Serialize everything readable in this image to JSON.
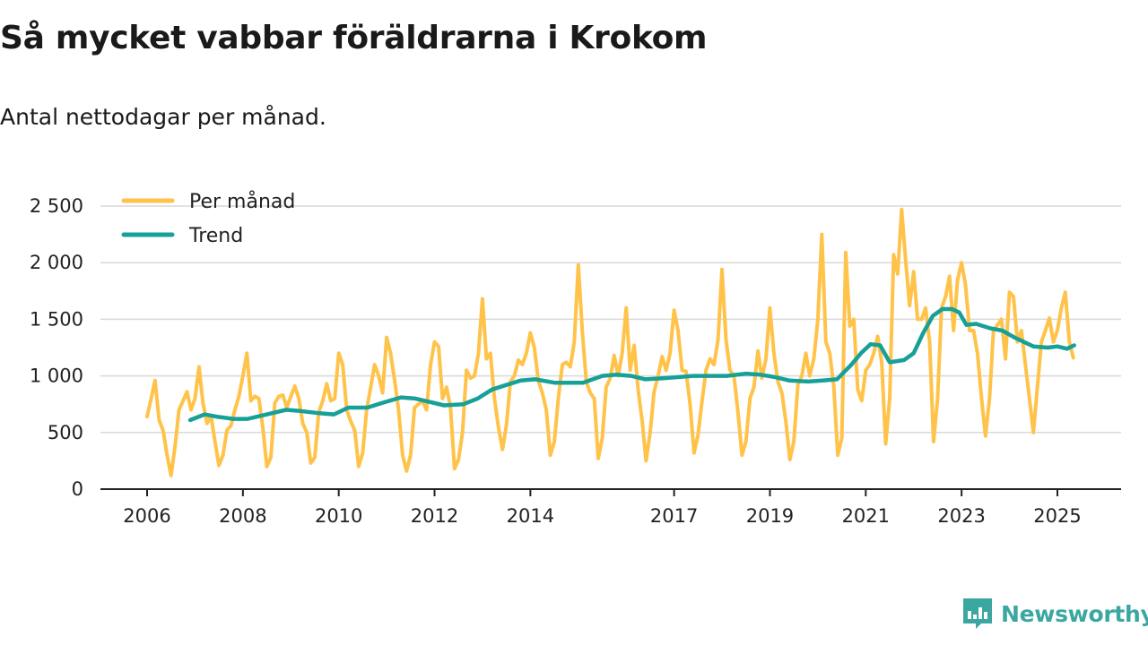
{
  "title": "Så mycket vabbar föräldrarna i Krokom",
  "subtitle": "Antal nettodagar per månad.",
  "brand": {
    "name": "Newsworthy",
    "icon": "newsworthy-logo-icon"
  },
  "colors": {
    "monthly": "#ffc34a",
    "trend": "#17a097",
    "grid": "#d9d9d9",
    "axis": "#222222"
  },
  "chart_data": {
    "type": "line",
    "title": "Så mycket vabbar föräldrarna i Krokom",
    "subtitle": "Antal nettodagar per månad.",
    "xlabel": "",
    "ylabel": "",
    "xlim": [
      2006,
      2025.5
    ],
    "ylim": [
      0,
      2500
    ],
    "yticks": [
      0,
      500,
      1000,
      1500,
      2000,
      2500
    ],
    "ytick_labels": [
      "0",
      "500",
      "1 000",
      "1 500",
      "2 000",
      "2 500"
    ],
    "xticks": [
      2006,
      2008,
      2010,
      2012,
      2014,
      2017,
      2019,
      2021,
      2023,
      2025
    ],
    "xtick_labels": [
      "2006",
      "2008",
      "2010",
      "2012",
      "2014",
      "2017",
      "2019",
      "2021",
      "2023",
      "2025"
    ],
    "grid": true,
    "legend_position": "top-left",
    "series": [
      {
        "name": "Per månad",
        "color": "#ffc34a",
        "x_start": 2006,
        "step": 0.08333,
        "values": [
          640,
          800,
          960,
          610,
          520,
          300,
          120,
          380,
          700,
          780,
          860,
          700,
          800,
          1080,
          760,
          580,
          650,
          420,
          210,
          300,
          520,
          560,
          700,
          820,
          1000,
          1200,
          780,
          820,
          800,
          540,
          200,
          280,
          760,
          820,
          830,
          720,
          820,
          910,
          800,
          580,
          500,
          230,
          280,
          680,
          780,
          930,
          780,
          800,
          1200,
          1100,
          700,
          600,
          520,
          200,
          320,
          700,
          900,
          1100,
          1000,
          850,
          1340,
          1200,
          960,
          700,
          300,
          160,
          300,
          720,
          750,
          780,
          700,
          1100,
          1300,
          1260,
          800,
          900,
          720,
          180,
          260,
          500,
          1050,
          980,
          1000,
          1200,
          1680,
          1150,
          1200,
          800,
          550,
          350,
          560,
          950,
          1000,
          1140,
          1100,
          1200,
          1380,
          1250,
          960,
          850,
          700,
          300,
          420,
          800,
          1100,
          1120,
          1080,
          1300,
          1980,
          1400,
          950,
          850,
          800,
          270,
          450,
          900,
          980,
          1180,
          1000,
          1200,
          1600,
          1050,
          1270,
          880,
          600,
          250,
          500,
          860,
          1000,
          1170,
          1050,
          1200,
          1580,
          1400,
          1050,
          1040,
          750,
          320,
          480,
          780,
          1050,
          1150,
          1100,
          1320,
          1940,
          1320,
          1050,
          1000,
          680,
          300,
          420,
          800,
          900,
          1220,
          980,
          1150,
          1600,
          1200,
          950,
          850,
          600,
          260,
          420,
          920,
          1000,
          1200,
          1000,
          1150,
          1500,
          2250,
          1300,
          1200,
          900,
          300,
          450,
          2090,
          1440,
          1500,
          880,
          780,
          1050,
          1100,
          1200,
          1350,
          1120,
          400,
          800,
          2070,
          1900,
          2470,
          2020,
          1620,
          1920,
          1500,
          1500,
          1600,
          1300,
          420,
          800,
          1600,
          1700,
          1880,
          1400,
          1850,
          2000,
          1800,
          1400,
          1400,
          1200,
          800,
          470,
          800,
          1400,
          1450,
          1500,
          1150,
          1740,
          1700,
          1300,
          1400,
          1100,
          800,
          500,
          900,
          1300,
          1400,
          1510,
          1300,
          1400,
          1600,
          1740,
          1300,
          1160
        ]
      },
      {
        "name": "Trend",
        "color": "#17a097",
        "x": [
          2006.9,
          2007.2,
          2007.45,
          2007.8,
          2008.1,
          2008.5,
          2008.9,
          2009.2,
          2009.6,
          2009.9,
          2010.2,
          2010.6,
          2010.9,
          2011.3,
          2011.6,
          2011.9,
          2012.2,
          2012.6,
          2012.9,
          2013.2,
          2013.5,
          2013.8,
          2014.1,
          2014.5,
          2014.8,
          2015.1,
          2015.5,
          2015.8,
          2016.1,
          2016.4,
          2016.8,
          2017.1,
          2017.4,
          2017.8,
          2018.1,
          2018.5,
          2018.8,
          2019.1,
          2019.4,
          2019.8,
          2020.1,
          2020.4,
          2020.7,
          2020.9,
          2021.1,
          2021.3,
          2021.5,
          2021.8,
          2022.0,
          2022.2,
          2022.4,
          2022.6,
          2022.8,
          2022.95,
          2023.1,
          2023.3,
          2023.6,
          2023.85,
          2024.1,
          2024.3,
          2024.5,
          2024.8,
          2025.0,
          2025.2,
          2025.35
        ],
        "values": [
          610,
          660,
          640,
          620,
          620,
          660,
          700,
          690,
          670,
          660,
          720,
          720,
          760,
          810,
          800,
          770,
          740,
          750,
          800,
          880,
          920,
          960,
          970,
          940,
          940,
          940,
          1000,
          1010,
          1000,
          970,
          980,
          990,
          1000,
          1000,
          1000,
          1020,
          1010,
          990,
          960,
          950,
          960,
          970,
          1100,
          1200,
          1280,
          1270,
          1120,
          1140,
          1200,
          1380,
          1530,
          1590,
          1590,
          1560,
          1450,
          1460,
          1420,
          1400,
          1340,
          1300,
          1260,
          1250,
          1260,
          1240,
          1270
        ]
      }
    ]
  }
}
